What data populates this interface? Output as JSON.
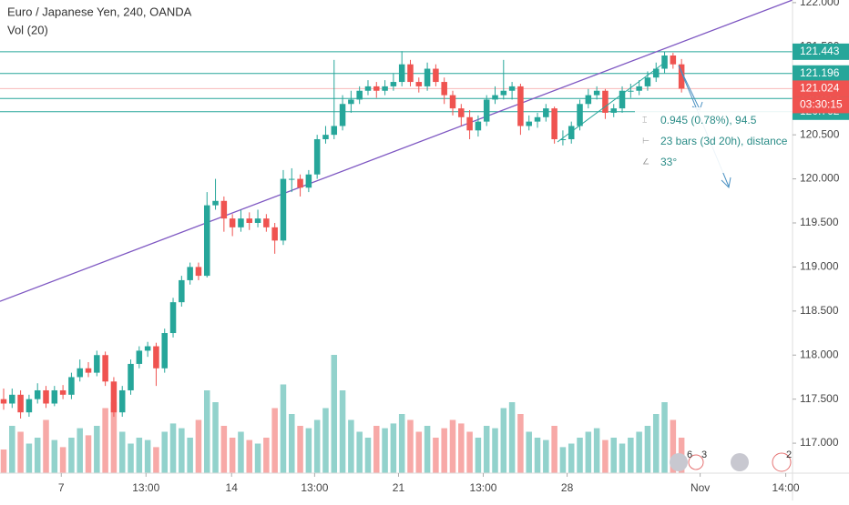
{
  "chart_data": {
    "type": "candlestick",
    "title": "Euro / Japanese Yen, 240, OANDA",
    "volume_label": "Vol (20)",
    "up_color": "#26a69a",
    "down_color": "#ef5350",
    "ylim": [
      116.66,
      122.03
    ],
    "xlim": [
      -0.43,
      93.1
    ],
    "volume_ylim": [
      0,
      400
    ],
    "yticks": [
      {
        "value": 122,
        "label": "122.000"
      },
      {
        "value": 121.5,
        "label": "121.500"
      },
      {
        "value": 121,
        "label": "121.000"
      },
      {
        "value": 120.5,
        "label": "120.500"
      },
      {
        "value": 120,
        "label": "120.000"
      },
      {
        "value": 119.5,
        "label": "119.500"
      },
      {
        "value": 119,
        "label": "119.000"
      },
      {
        "value": 118.5,
        "label": "118.500"
      },
      {
        "value": 118,
        "label": "118.000"
      },
      {
        "value": 117.5,
        "label": "117.500"
      },
      {
        "value": 117,
        "label": "117.000"
      }
    ],
    "xticks": [
      {
        "value": 6.8,
        "label": "7"
      },
      {
        "value": 16.8,
        "label": "13:00"
      },
      {
        "value": 26.9,
        "label": "14"
      },
      {
        "value": 36.7,
        "label": "13:00"
      },
      {
        "value": 46.6,
        "label": "21"
      },
      {
        "value": 56.6,
        "label": "13:00"
      },
      {
        "value": 66.5,
        "label": "28"
      },
      {
        "value": 82.2,
        "label": "Nov"
      },
      {
        "value": 92.3,
        "label": "14:00"
      }
    ],
    "candles": [
      [
        117.5,
        117.62,
        117.38,
        117.45
      ],
      [
        117.45,
        117.62,
        117.4,
        117.55
      ],
      [
        117.55,
        117.6,
        117.28,
        117.35
      ],
      [
        117.35,
        117.55,
        117.3,
        117.5
      ],
      [
        117.5,
        117.68,
        117.45,
        117.6
      ],
      [
        117.6,
        117.65,
        117.4,
        117.45
      ],
      [
        117.45,
        117.65,
        117.42,
        117.6
      ],
      [
        117.6,
        117.66,
        117.5,
        117.55
      ],
      [
        117.55,
        117.8,
        117.5,
        117.75
      ],
      [
        117.75,
        117.95,
        117.7,
        117.85
      ],
      [
        117.85,
        117.92,
        117.75,
        117.8
      ],
      [
        117.8,
        118.05,
        117.76,
        118.0
      ],
      [
        118.0,
        118.04,
        117.65,
        117.7
      ],
      [
        117.7,
        117.75,
        117.3,
        117.35
      ],
      [
        117.35,
        117.65,
        117.3,
        117.6
      ],
      [
        117.6,
        117.95,
        117.55,
        117.9
      ],
      [
        117.9,
        118.1,
        117.85,
        118.05
      ],
      [
        118.05,
        118.15,
        117.98,
        118.1
      ],
      [
        118.1,
        118.14,
        117.65,
        117.85
      ],
      [
        117.85,
        118.3,
        117.8,
        118.25
      ],
      [
        118.25,
        118.65,
        118.2,
        118.6
      ],
      [
        118.6,
        118.9,
        118.55,
        118.85
      ],
      [
        118.85,
        119.05,
        118.8,
        119.0
      ],
      [
        119.0,
        119.05,
        118.85,
        118.9
      ],
      [
        118.9,
        119.85,
        118.88,
        119.7
      ],
      [
        119.7,
        120.0,
        119.65,
        119.75
      ],
      [
        119.75,
        119.8,
        119.4,
        119.55
      ],
      [
        119.55,
        119.6,
        119.35,
        119.45
      ],
      [
        119.45,
        119.65,
        119.4,
        119.55
      ],
      [
        119.55,
        119.62,
        119.42,
        119.5
      ],
      [
        119.5,
        119.65,
        119.45,
        119.55
      ],
      [
        119.55,
        119.6,
        119.4,
        119.45
      ],
      [
        119.45,
        119.5,
        119.15,
        119.3
      ],
      [
        119.3,
        120.1,
        119.25,
        120.0
      ],
      [
        120.0,
        120.12,
        119.85,
        120.0
      ],
      [
        120.0,
        120.05,
        119.8,
        119.9
      ],
      [
        119.9,
        120.1,
        119.85,
        120.05
      ],
      [
        120.05,
        120.5,
        120.0,
        120.45
      ],
      [
        120.45,
        120.6,
        120.4,
        120.5
      ],
      [
        120.5,
        121.35,
        120.45,
        120.6
      ],
      [
        120.6,
        120.95,
        120.55,
        120.85
      ],
      [
        120.85,
        121.0,
        120.75,
        120.9
      ],
      [
        120.9,
        121.05,
        120.85,
        121.0
      ],
      [
        121.0,
        121.12,
        120.95,
        121.05
      ],
      [
        121.05,
        121.1,
        120.92,
        121.0
      ],
      [
        121.0,
        121.12,
        120.95,
        121.05
      ],
      [
        121.05,
        121.2,
        121.0,
        121.1
      ],
      [
        121.1,
        121.45,
        121.05,
        121.3
      ],
      [
        121.3,
        121.35,
        121.05,
        121.1
      ],
      [
        121.1,
        121.15,
        120.98,
        121.05
      ],
      [
        121.05,
        121.32,
        121.0,
        121.25
      ],
      [
        121.25,
        121.3,
        121.05,
        121.1
      ],
      [
        121.1,
        121.15,
        120.85,
        120.95
      ],
      [
        120.95,
        121.0,
        120.72,
        120.8
      ],
      [
        120.8,
        120.85,
        120.6,
        120.7
      ],
      [
        120.7,
        120.78,
        120.45,
        120.55
      ],
      [
        120.55,
        120.72,
        120.48,
        120.65
      ],
      [
        120.65,
        120.95,
        120.6,
        120.9
      ],
      [
        120.9,
        121.05,
        120.85,
        120.95
      ],
      [
        120.95,
        121.35,
        120.9,
        121.0
      ],
      [
        121.0,
        121.1,
        120.9,
        121.05
      ],
      [
        121.05,
        121.08,
        120.5,
        120.6
      ],
      [
        120.6,
        120.72,
        120.55,
        120.65
      ],
      [
        120.65,
        120.75,
        120.58,
        120.7
      ],
      [
        120.7,
        120.85,
        120.65,
        120.8
      ],
      [
        120.8,
        120.82,
        120.4,
        120.45
      ],
      [
        120.45,
        120.55,
        120.38,
        120.45
      ],
      [
        120.45,
        120.65,
        120.4,
        120.6
      ],
      [
        120.6,
        120.9,
        120.55,
        120.85
      ],
      [
        120.85,
        121.02,
        120.8,
        120.95
      ],
      [
        120.95,
        121.05,
        120.9,
        121.0
      ],
      [
        121.0,
        121.02,
        120.68,
        120.75
      ],
      [
        120.75,
        120.85,
        120.7,
        120.8
      ],
      [
        120.8,
        121.05,
        120.75,
        121.0
      ],
      [
        121.0,
        121.08,
        120.92,
        121.0
      ],
      [
        121.0,
        121.12,
        120.95,
        121.05
      ],
      [
        121.05,
        121.22,
        121.0,
        121.15
      ],
      [
        121.15,
        121.32,
        121.1,
        121.25
      ],
      [
        121.25,
        121.443,
        121.2,
        121.4
      ],
      [
        121.4,
        121.43,
        121.25,
        121.3
      ],
      [
        121.3,
        121.36,
        120.98,
        121.024
      ]
    ],
    "volumes": [
      20,
      40,
      35,
      25,
      30,
      45,
      28,
      22,
      30,
      38,
      32,
      40,
      55,
      60,
      35,
      25,
      30,
      28,
      22,
      35,
      42,
      38,
      30,
      45,
      70,
      60,
      40,
      30,
      35,
      28,
      25,
      30,
      55,
      75,
      50,
      40,
      38,
      45,
      55,
      100,
      70,
      45,
      35,
      30,
      40,
      38,
      42,
      50,
      45,
      35,
      40,
      30,
      38,
      45,
      42,
      35,
      30,
      40,
      38,
      55,
      60,
      50,
      35,
      30,
      28,
      40,
      22,
      25,
      30,
      35,
      38,
      28,
      30,
      25,
      30,
      35,
      40,
      50,
      60,
      45,
      30
    ],
    "price_lines": [
      121.443,
      121.196,
      120.912,
      120.762
    ],
    "price_line_color": "#26a69a",
    "last_price": 121.024,
    "countdown": "03:30:15",
    "trendline": {
      "x": [
        -0.43,
        93.1
      ],
      "y": [
        118.61,
        122.03
      ],
      "color": "#7e57c2"
    },
    "measure": [
      "0.945 (0.78%), 94.5",
      "23 bars (3d 20h), distance",
      "33°"
    ],
    "badges": [
      "6",
      "3",
      "2"
    ]
  }
}
